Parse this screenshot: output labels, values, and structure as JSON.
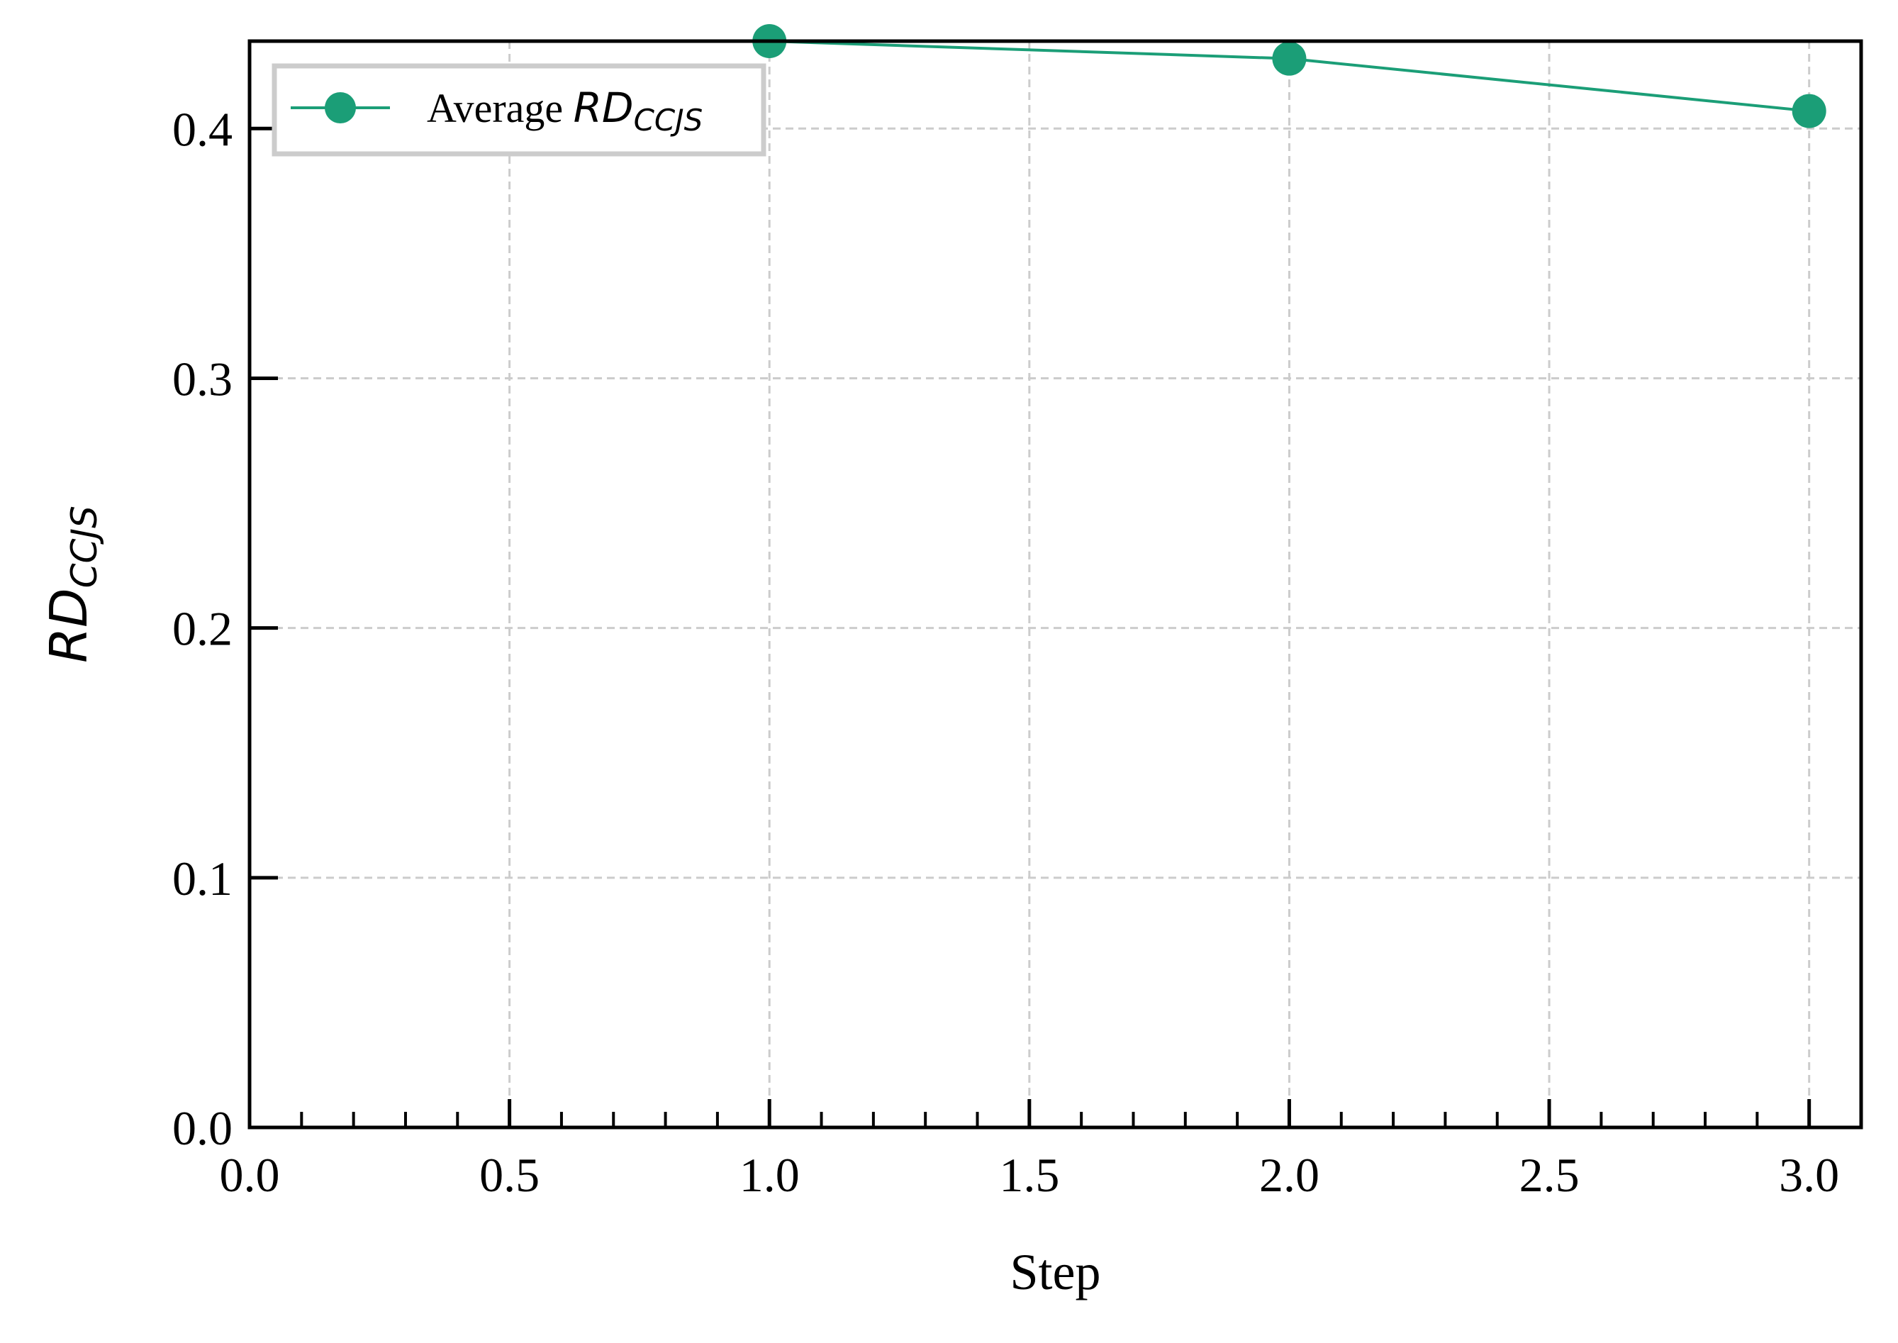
{
  "colors": {
    "series": "#1b9e77",
    "grid": "#cccccc",
    "axis": "#000000",
    "legend_border": "#cccccc"
  },
  "chart_data": {
    "type": "line",
    "xlabel": "Step",
    "ylabel": {
      "base": "RD",
      "sub": "CCJS"
    },
    "xlim": [
      0.0,
      3.1
    ],
    "ylim": [
      0.0,
      0.435
    ],
    "x_ticks": [
      "0.0",
      "0.5",
      "1.0",
      "1.5",
      "2.0",
      "2.5",
      "3.0"
    ],
    "y_ticks": [
      "0.0",
      "0.1",
      "0.2",
      "0.3",
      "0.4"
    ],
    "grid": true,
    "legend_position": "top-left",
    "series": [
      {
        "name": {
          "prefix": "Average ",
          "base": "RD",
          "sub": "CCJS"
        },
        "marker": "circle",
        "x": [
          1.0,
          2.0,
          3.0
        ],
        "y": [
          0.435,
          0.428,
          0.407
        ]
      }
    ]
  }
}
